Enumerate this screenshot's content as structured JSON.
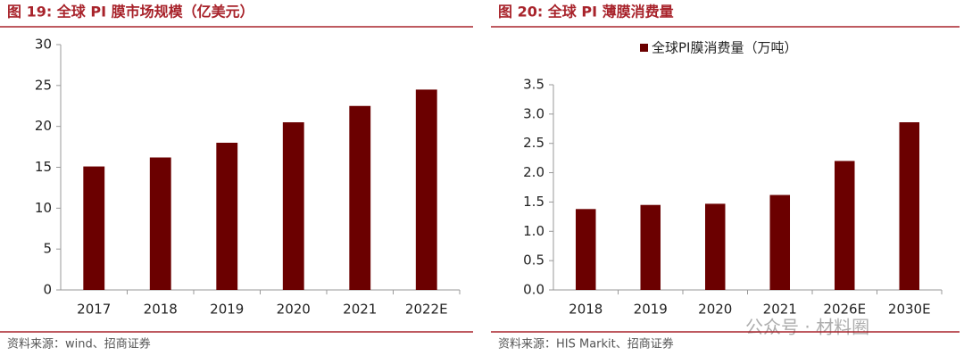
{
  "chart_data": [
    {
      "type": "bar",
      "title": "图 19:  全球 PI 膜市场规模（亿美元）",
      "categories": [
        "2017",
        "2018",
        "2019",
        "2020",
        "2021",
        "2022E"
      ],
      "values": [
        15.1,
        16.2,
        18.0,
        20.5,
        22.5,
        24.5
      ],
      "color": "#6b0000",
      "ylim": [
        0,
        30
      ],
      "yticks": [
        0,
        5,
        10,
        15,
        20,
        25,
        30
      ],
      "grid": false,
      "source": "资料来源：wind、招商证券"
    },
    {
      "type": "bar",
      "title": "图 20:  全球 PI 薄膜消费量",
      "categories": [
        "2018",
        "2019",
        "2020",
        "2021",
        "2026E",
        "2030E"
      ],
      "series": [
        {
          "name": "全球PI膜消费量（万吨）",
          "color": "#6b0000",
          "values": [
            1.38,
            1.45,
            1.47,
            1.62,
            2.2,
            2.86
          ]
        }
      ],
      "ylim": [
        0,
        3.5
      ],
      "yticks": [
        {
          "value": 0,
          "label": "0.0"
        },
        0.5,
        {
          "value": 1,
          "label": "1.0"
        },
        1.5,
        {
          "value": 2,
          "label": "2.0"
        },
        2.5,
        {
          "value": 3,
          "label": "3.0"
        },
        3.5
      ],
      "grid": false,
      "legend": "top",
      "source": "资料来源：HIS Markit、招商证券"
    }
  ],
  "watermark": "公众号 · 材料圈"
}
